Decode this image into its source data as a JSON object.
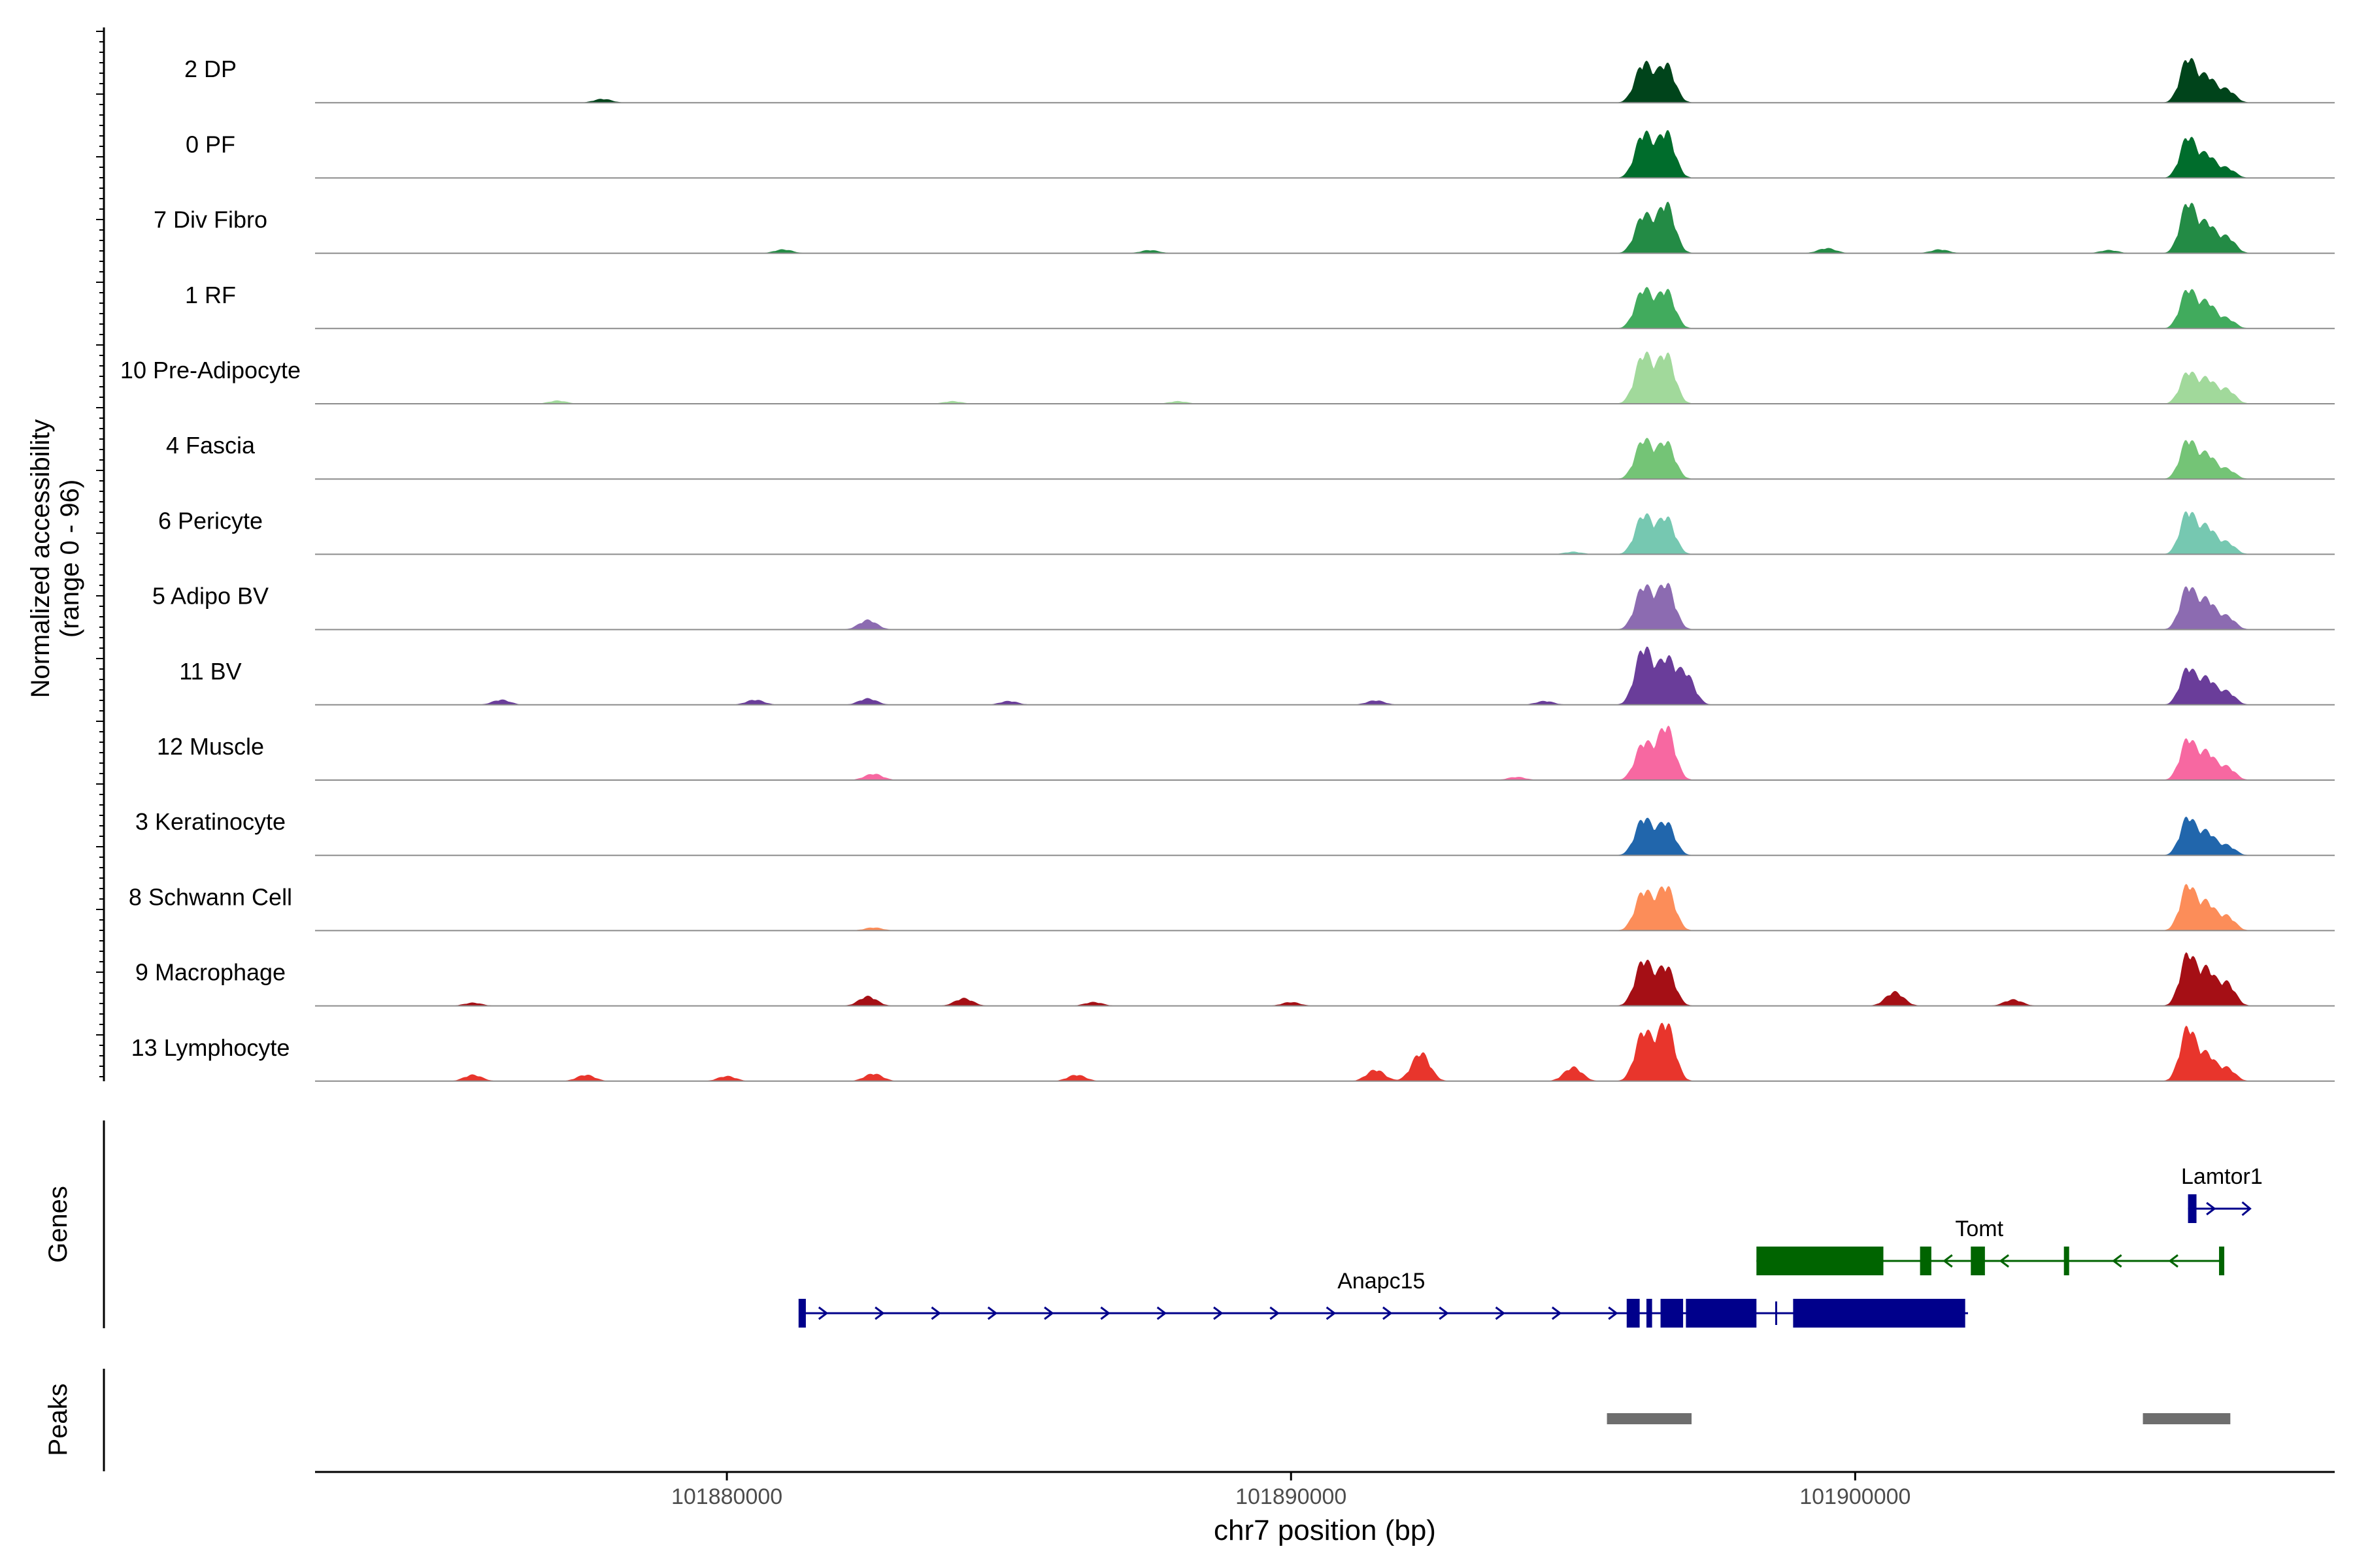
{
  "chart_data": {
    "type": "area",
    "chromosome": "chr7",
    "xlim": [
      101872700,
      101908500
    ],
    "x_ticks": [
      101880000,
      101890000,
      101900000
    ],
    "x_tick_labels": [
      "101880000",
      "101890000",
      "101900000"
    ],
    "xlabel": "chr7 position (bp)",
    "ylabel_line1": "Normalized accessibility",
    "ylabel_line2": "(range 0 - 96)",
    "ylim": [
      0,
      96
    ],
    "tracks": [
      {
        "name": "2 DP",
        "color": "#00441b",
        "peak1": [
          62,
          60
        ],
        "peak2": [
          70,
          40,
          20
        ],
        "noise": [
          "101877800:6"
        ]
      },
      {
        "name": "0 PF",
        "color": "#006d2c",
        "peak1": [
          70,
          72
        ],
        "peak2": [
          65,
          35,
          15
        ],
        "noise": []
      },
      {
        "name": "7 Div Fibro",
        "color": "#238b45",
        "peak1": [
          60,
          78
        ],
        "peak2": [
          80,
          45,
          25
        ],
        "noise": [
          "101881000:6",
          "101887500:5",
          "101899500:8",
          "101901500:6",
          "101904500:5"
        ]
      },
      {
        "name": "1 RF",
        "color": "#41ab5d",
        "peak1": [
          62,
          60
        ],
        "peak2": [
          62,
          40,
          15
        ],
        "noise": []
      },
      {
        "name": "10 Pre-Adipocyte",
        "color": "#a1d99b",
        "peak1": [
          78,
          78
        ],
        "peak2": [
          50,
          38,
          22
        ],
        "noise": [
          "101877000:5",
          "101884000:4",
          "101888000:4"
        ]
      },
      {
        "name": "4 Fascia",
        "color": "#74c476",
        "peak1": [
          62,
          58
        ],
        "peak2": [
          62,
          38,
          15
        ],
        "noise": []
      },
      {
        "name": "6 Pericyte",
        "color": "#76c8b1",
        "peak1": [
          62,
          58
        ],
        "peak2": [
          68,
          42,
          18
        ],
        "noise": [
          "101895000:4"
        ]
      },
      {
        "name": "5 Adipo BV",
        "color": "#8c6bb1",
        "peak1": [
          68,
          72
        ],
        "peak2": [
          68,
          45,
          20
        ],
        "noise": [
          "101882500:15"
        ]
      },
      {
        "name": "11 BV",
        "color": "#6a3d9a",
        "peak1": [
          90,
          70,
          40
        ],
        "peak2": [
          58,
          40,
          20
        ],
        "noise": [
          "101876000:8",
          "101880500:8",
          "101882500:10",
          "101885000:6",
          "101891500:7",
          "101894500:6",
          "101897000:8"
        ]
      },
      {
        "name": "12 Muscle",
        "color": "#f768a1",
        "peak1": [
          58,
          85
        ],
        "peak2": [
          65,
          42,
          20
        ],
        "noise": [
          "101882600:10",
          "101894000:5"
        ]
      },
      {
        "name": "3 Keratinocyte",
        "color": "#2166ac",
        "peak1": [
          58,
          52
        ],
        "peak2": [
          60,
          35,
          15
        ],
        "noise": []
      },
      {
        "name": "8 Schwann Cell",
        "color": "#fc8d59",
        "peak1": [
          62,
          70
        ],
        "peak2": [
          72,
          42,
          22
        ],
        "noise": [
          "101882600:5"
        ]
      },
      {
        "name": "9 Macrophage",
        "color": "#a50f15",
        "peak1": [
          72,
          62
        ],
        "peak2": [
          82,
          55,
          35
        ],
        "noise": [
          "101875500:5",
          "101882500:15",
          "101884200:12",
          "101886500:6",
          "101890000:6",
          "101900700:22",
          "101902800:10"
        ]
      },
      {
        "name": "13 Lymphocyte",
        "color": "#e8352c",
        "peak1": [
          78,
          92
        ],
        "peak2": [
          85,
          40,
          20
        ],
        "noise": [
          "101875500:10",
          "101877500:10",
          "101880000:8",
          "101882600:12",
          "101886200:10",
          "101891500:18",
          "101892300:45",
          "101895000:22"
        ]
      }
    ],
    "genes_label": "Genes",
    "peaks_label": "Peaks",
    "genes": [
      {
        "name": "Anapc15",
        "strand": "+",
        "start": 101881300,
        "end": 101902000,
        "color": "#00008b",
        "exons": [
          [
            101881300,
            101881400
          ],
          [
            101895950,
            101896180
          ],
          [
            101896300,
            101896400
          ],
          [
            101896550,
            101896950
          ],
          [
            101897000,
            101898250
          ],
          [
            101898900,
            101901950
          ]
        ],
        "intron_marks": [
          101898600
        ]
      },
      {
        "name": "Tomt",
        "strand": "-",
        "start": 101898250,
        "end": 101906500,
        "color": "#006400",
        "exons": [
          [
            101898250,
            101900500
          ],
          [
            101901150,
            101901350
          ],
          [
            101902050,
            101902300
          ],
          [
            101903700,
            101903780
          ],
          [
            101906450,
            101906500
          ]
        ],
        "intron_marks": []
      },
      {
        "name": "Lamtor1",
        "strand": "+",
        "start": 101905900,
        "end": 101907000,
        "color": "#00008b",
        "exons": [
          [
            101905900,
            101906050
          ]
        ],
        "intron_marks": []
      }
    ],
    "peaks": [
      {
        "start": 101895600,
        "end": 101897100,
        "color": "#6e6e6e"
      },
      {
        "start": 101905100,
        "end": 101906650,
        "color": "#6e6e6e"
      }
    ]
  }
}
